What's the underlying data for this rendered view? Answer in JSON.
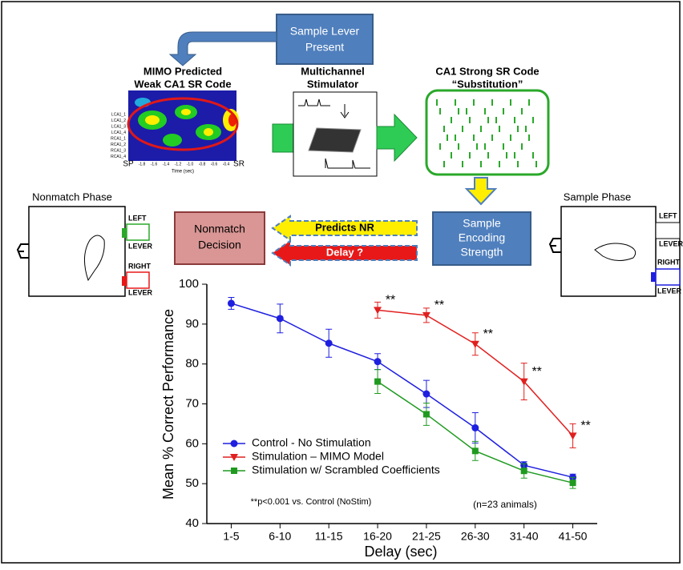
{
  "diagram": {
    "sample_lever": [
      "Sample Lever",
      "Present"
    ],
    "mimo_title": [
      "MIMO Predicted",
      "Weak CA1  SR Code"
    ],
    "heatmap_rows": [
      "LCA1_1",
      "LCA1_2",
      "LCA1_3",
      "LCA1_4",
      "RCA1_1",
      "RCA1_2",
      "RCA1_3",
      "RCA1_4"
    ],
    "heatmap_start": "SP",
    "heatmap_end": "SR",
    "heatmap_ticks": [
      "-1.8",
      "-1.6",
      "-1.4",
      "-1.2",
      "-1.0",
      "-0.8",
      "-0.6",
      "-0.4"
    ],
    "heatmap_axis": "Time (sec)",
    "stimulator_title": [
      "Multichannel",
      "Stimulator"
    ],
    "ca1_title": [
      "CA1 Strong  SR Code",
      "“Substitution”"
    ],
    "nonmatch_phase": "Nonmatch Phase",
    "sample_phase": "Sample Phase",
    "left_lever": [
      "LEFT",
      "LEVER"
    ],
    "right_lever": [
      "RIGHT",
      "LEVER"
    ],
    "sample_left_lever": [
      "LEFT",
      "LEVER"
    ],
    "sample_right_lever": [
      "RIGHT",
      "LEVER"
    ],
    "nonmatch_decision": [
      "Nonmatch",
      "Decision"
    ],
    "predicts": "Predicts NR",
    "delay": "Delay ?",
    "encoding": [
      "Sample",
      "Encoding",
      "Strength"
    ]
  },
  "chart_data": {
    "type": "line",
    "x_label": "Delay (sec)",
    "y_label": "Mean % Correct Performance",
    "categories": [
      "1-5",
      "6-10",
      "11-15",
      "16-20",
      "21-25",
      "26-30",
      "31-40",
      "41-50"
    ],
    "ylim": [
      40,
      100
    ],
    "yticks": [
      40,
      50,
      60,
      70,
      80,
      90,
      100
    ],
    "legend": "lower left",
    "series": [
      {
        "name": "Control - No Stimulation",
        "color": "#1f1fe0",
        "marker": "circle",
        "values": [
          95.2,
          91.4,
          85.2,
          80.6,
          72.5,
          64,
          54.6,
          51.6
        ],
        "errors": [
          1.5,
          3.6,
          3.5,
          2,
          3.4,
          3.8,
          0.9,
          0.8
        ]
      },
      {
        "name": "Stimulation – MIMO Model",
        "color": "#e0201f",
        "marker": "triangle",
        "values": [
          null,
          null,
          null,
          93.5,
          92.2,
          85,
          75.6,
          62
        ],
        "errors": [
          null,
          null,
          null,
          2,
          1.8,
          2.8,
          4.6,
          3
        ]
      },
      {
        "name": "Stimulation w/ Scrambled Coefficients",
        "color": "#1f9a1f",
        "marker": "square",
        "values": [
          null,
          null,
          null,
          75.6,
          67.4,
          58.2,
          53.2,
          50.2
        ],
        "errors": [
          null,
          null,
          null,
          3,
          2.8,
          2.4,
          1.8,
          1.4
        ]
      }
    ],
    "annotations": [
      "**",
      "**",
      "**",
      "**",
      "**"
    ],
    "footnote": "**p<0.001 vs. Control (NoStim)",
    "sample_note": "(n=23 animals)"
  }
}
